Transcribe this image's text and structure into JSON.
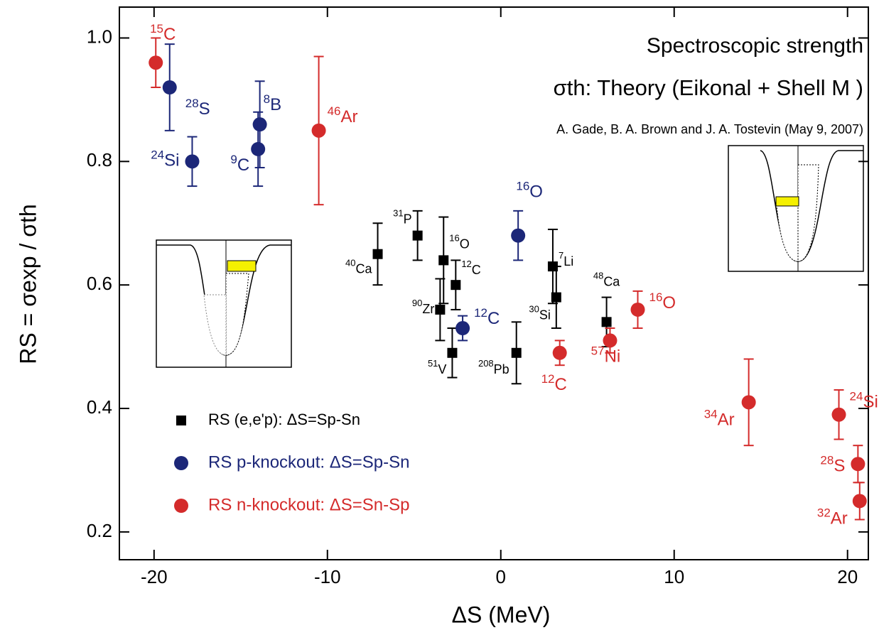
{
  "chart_data": {
    "type": "scatter",
    "title": "Spectroscopic strength",
    "subtitle": "σth: Theory (Eikonal + Shell M )",
    "annotation": "A. Gade, B. A. Brown and J. A. Tostevin (May 9, 2007)",
    "xlabel": "ΔS (MeV)",
    "ylabel": "RS = σexp / σth",
    "xlim": [
      -22,
      21.2
    ],
    "ylim": [
      0.155,
      1.05
    ],
    "xticks": [
      -20,
      -10,
      0,
      10,
      20
    ],
    "yticks": [
      0.2,
      0.4,
      0.6,
      0.8,
      {
        "value": 1,
        "label": "1.0"
      }
    ],
    "legend": "lower left",
    "series": [
      {
        "name": "RS (e,e'p): ΔS=Sp-Sn",
        "color": "#000000",
        "marker": "square",
        "mass_numbers": [
          "40",
          "31",
          "16",
          "12",
          "90",
          "51",
          "208",
          "7",
          "30",
          "48"
        ],
        "elements": [
          "Ca",
          "P",
          "O",
          "C",
          "Zr",
          "V",
          "Pb",
          "Li",
          "Si",
          "Ca"
        ],
        "x": [
          -7.1,
          -4.8,
          -3.3,
          -2.6,
          -3.5,
          -2.8,
          0.9,
          3.0,
          3.2,
          6.1
        ],
        "values": [
          0.65,
          0.68,
          0.64,
          0.6,
          0.56,
          0.49,
          0.49,
          0.63,
          0.58,
          0.54
        ],
        "errors": [
          0.05,
          0.04,
          0.07,
          0.04,
          0.05,
          0.04,
          0.05,
          0.06,
          0.05,
          0.04
        ]
      },
      {
        "name": "RS p-knockout: ΔS=Sp-Sn",
        "color": "#1c2778",
        "marker": "circle",
        "mass_numbers": [
          "28",
          "24",
          "8",
          "9",
          "16",
          "12"
        ],
        "elements": [
          "S",
          "Si",
          "B",
          "C",
          "O",
          "C"
        ],
        "x": [
          -19.1,
          -17.8,
          -13.9,
          -14.0,
          1.0,
          -2.2
        ],
        "values": [
          0.92,
          0.8,
          0.86,
          0.82,
          0.68,
          0.53
        ],
        "errors": [
          0.07,
          0.04,
          0.07,
          0.06,
          0.04,
          0.02
        ]
      },
      {
        "name": "RS n-knockout: ΔS=Sn-Sp",
        "color": "#d42b2b",
        "marker": "circle",
        "mass_numbers": [
          "15",
          "46",
          "12",
          "57",
          "16",
          "34",
          "24",
          "28",
          "32"
        ],
        "elements": [
          "C",
          "Ar",
          "C",
          "Ni",
          "O",
          "Ar",
          "Si",
          "S",
          "Ar"
        ],
        "x": [
          -19.9,
          -10.5,
          3.4,
          6.3,
          7.9,
          14.3,
          19.5,
          20.6,
          20.7
        ],
        "values": [
          0.96,
          0.85,
          0.49,
          0.51,
          0.56,
          0.41,
          0.39,
          0.31,
          0.25
        ],
        "errors": [
          0.04,
          0.12,
          0.02,
          0.02,
          0.03,
          0.07,
          0.04,
          0.03,
          0.03
        ]
      }
    ]
  }
}
